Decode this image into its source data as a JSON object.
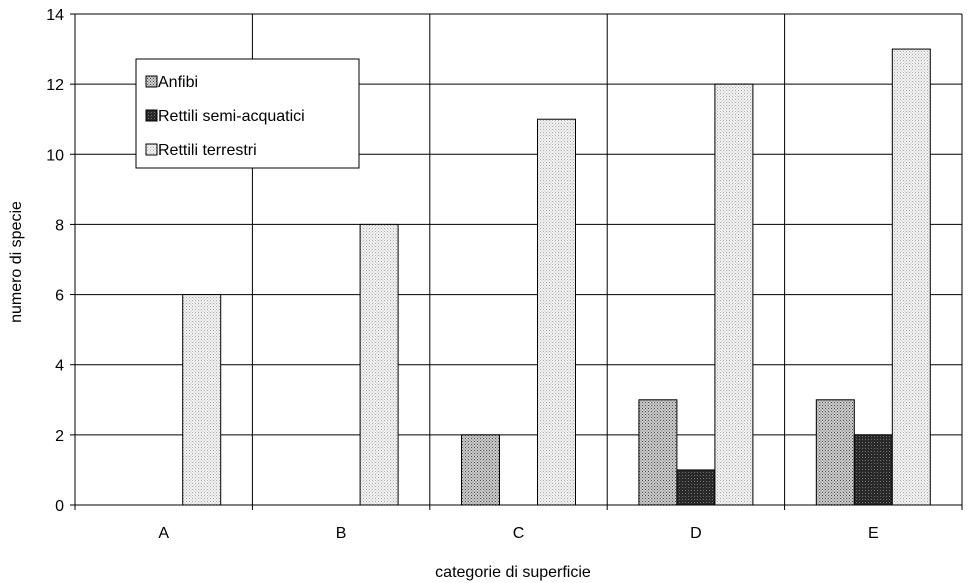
{
  "chart_data": {
    "type": "bar",
    "title": "",
    "xlabel": "categorie di superficie",
    "ylabel": "numero di specie",
    "categories": [
      "A",
      "B",
      "C",
      "D",
      "E"
    ],
    "ylim": [
      0,
      14
    ],
    "yticks": [
      0,
      2,
      4,
      6,
      8,
      10,
      12,
      14
    ],
    "grid": true,
    "legend_position": "top-left",
    "series": [
      {
        "name": "Anfibi",
        "values": [
          0,
          0,
          2,
          3,
          3
        ],
        "color": "#a9a9a9",
        "pattern": "medium-dots"
      },
      {
        "name": "Rettili semi-acquatici",
        "values": [
          0,
          0,
          0,
          1,
          2
        ],
        "color": "#3a3a3a",
        "pattern": "dark-dots"
      },
      {
        "name": "Rettili terrestri",
        "values": [
          6,
          8,
          11,
          12,
          13
        ],
        "color": "#e6e6e6",
        "pattern": "light-dots"
      }
    ]
  }
}
